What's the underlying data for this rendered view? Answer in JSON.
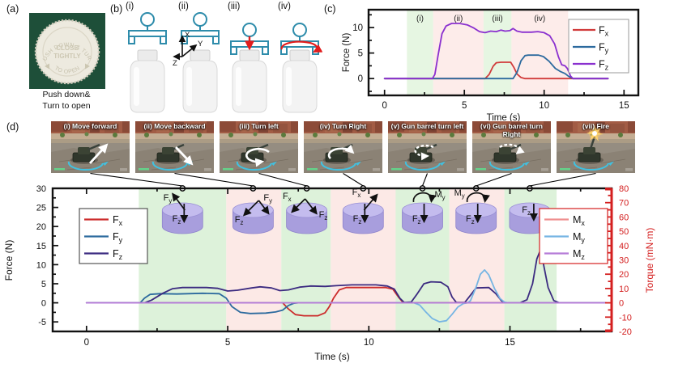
{
  "panels": {
    "a": {
      "label": "(a)",
      "cap": {
        "arc_top": "PUSH DOWN & TURN",
        "center_line1": "CLOSE",
        "center_line2": "TIGHTLY",
        "arc_bottom": "TO OPEN"
      },
      "caption_line1": "Push down&",
      "caption_line2": "Turn to open"
    },
    "b": {
      "label": "(b)",
      "axis_labels": {
        "x": "X",
        "y": "Y",
        "z": "Z"
      },
      "steps": [
        {
          "label": "(i)",
          "gripper": "above"
        },
        {
          "label": "(ii)",
          "gripper": "above",
          "axes": true
        },
        {
          "label": "(iii)",
          "gripper": "on",
          "arrow": "press-down"
        },
        {
          "label": "(iv)",
          "gripper": "on",
          "arrow": "rotate"
        }
      ]
    },
    "c": {
      "label": "(c)"
    },
    "d": {
      "label": "(d)",
      "shots": [
        {
          "label": "(i) Move forward",
          "overlay": "arrow-forward"
        },
        {
          "label": "(ii) Move backward",
          "overlay": "arrow-backward"
        },
        {
          "label": "(iii) Turn left",
          "overlay": "circle-ccw"
        },
        {
          "label": "(iv) Turn Right",
          "overlay": "circle-cw"
        },
        {
          "label": "(v) Gun barrel turn left",
          "overlay": "dashed-ccw"
        },
        {
          "label": "(vi) Gun barrel turn Right",
          "overlay": "dashed-cw"
        },
        {
          "label": "(vii) Fire",
          "overlay": "fire"
        }
      ]
    }
  },
  "chart_data": [
    {
      "id": "bottle-opening-forces",
      "type": "line",
      "xlabel": "Time (s)",
      "ylabel": "Force (N)",
      "xlim": [
        -1,
        15.9
      ],
      "ylim": [
        -3.3,
        13.5
      ],
      "xticks": [
        0,
        5,
        10,
        15
      ],
      "yticks": [
        0,
        5,
        10
      ],
      "x_minor_step": 2.5,
      "y_minor_step": 2.5,
      "show_region_labels": true,
      "regions": [
        {
          "label": "(i)",
          "x0": 1.4,
          "x1": 3.05,
          "color": "#e6f6e2"
        },
        {
          "label": "(ii)",
          "x0": 3.05,
          "x1": 6.2,
          "color": "#fdecea"
        },
        {
          "label": "(iii)",
          "x0": 6.2,
          "x1": 7.95,
          "color": "#e6f6e2"
        },
        {
          "label": "(iv)",
          "x0": 7.95,
          "x1": 11.5,
          "color": "#fdecea"
        }
      ],
      "series": [
        {
          "name": "Fx",
          "base": "F",
          "sub": "x",
          "color": "#d13b3b",
          "points": [
            [
              0,
              0
            ],
            [
              6.3,
              0
            ],
            [
              6.55,
              0.8
            ],
            [
              6.8,
              2.4
            ],
            [
              7.0,
              3.1
            ],
            [
              7.3,
              3.2
            ],
            [
              7.9,
              3.2
            ],
            [
              8.1,
              2.2
            ],
            [
              8.3,
              0.9
            ],
            [
              8.55,
              0.2
            ],
            [
              8.8,
              0
            ],
            [
              14,
              0
            ]
          ]
        },
        {
          "name": "Fy",
          "base": "F",
          "sub": "y",
          "color": "#2c6a9e",
          "points": [
            [
              0,
              0
            ],
            [
              8.05,
              0
            ],
            [
              8.3,
              1.2
            ],
            [
              8.55,
              3.5
            ],
            [
              8.8,
              4.5
            ],
            [
              9.0,
              4.6
            ],
            [
              9.65,
              4.6
            ],
            [
              9.95,
              4.3
            ],
            [
              10.3,
              3.4
            ],
            [
              10.7,
              2.0
            ],
            [
              11.0,
              1.4
            ],
            [
              11.3,
              1.0
            ],
            [
              11.55,
              0.4
            ],
            [
              11.8,
              0
            ],
            [
              14,
              0
            ]
          ]
        },
        {
          "name": "Fz",
          "base": "F",
          "sub": "z",
          "color": "#8a30cf",
          "points": [
            [
              0,
              0
            ],
            [
              3.0,
              0
            ],
            [
              3.15,
              0.8
            ],
            [
              3.35,
              4.5
            ],
            [
              3.6,
              8.8
            ],
            [
              3.85,
              10.3
            ],
            [
              4.2,
              10.8
            ],
            [
              4.7,
              10.8
            ],
            [
              5.2,
              10.5
            ],
            [
              5.6,
              9.9
            ],
            [
              5.95,
              9.2
            ],
            [
              6.3,
              9.0
            ],
            [
              6.65,
              9.3
            ],
            [
              7.0,
              9.2
            ],
            [
              7.3,
              9.5
            ],
            [
              7.55,
              9.3
            ],
            [
              7.85,
              9.4
            ],
            [
              8.05,
              9.8
            ],
            [
              8.3,
              9.3
            ],
            [
              8.6,
              9.1
            ],
            [
              9.2,
              9.1
            ],
            [
              9.6,
              9.2
            ],
            [
              10.0,
              9.0
            ],
            [
              10.35,
              8.4
            ],
            [
              10.65,
              6.8
            ],
            [
              10.9,
              4.2
            ],
            [
              11.1,
              2.7
            ],
            [
              11.3,
              2.5
            ],
            [
              11.45,
              2.0
            ],
            [
              11.65,
              0.5
            ],
            [
              11.8,
              0
            ],
            [
              14,
              0
            ]
          ]
        }
      ]
    },
    {
      "id": "tank-game-forces-torques",
      "type": "line",
      "xlabel": "Time (s)",
      "ylabel": "Force (N)",
      "y2label": "Torque (mN·m)",
      "axis2_color": "#d42020",
      "xlim": [
        -1.2,
        18.6
      ],
      "ylim": [
        -7.5,
        30
      ],
      "y2lim": [
        -20,
        80
      ],
      "xticks": [
        0,
        5,
        10,
        15
      ],
      "yticks": [
        -5,
        0,
        5,
        10,
        15,
        20,
        25,
        30
      ],
      "y2ticks": [
        -20,
        -10,
        0,
        10,
        20,
        30,
        40,
        50,
        60,
        70,
        80
      ],
      "x_minor_step": 2.5,
      "y_minor_step": 2.5,
      "y2_minor_step": 5,
      "show_region_labels": false,
      "regions": [
        {
          "label": "(i)",
          "x0": 1.85,
          "x1": 4.95,
          "color": "#ddf2da"
        },
        {
          "label": "(ii)",
          "x0": 4.95,
          "x1": 6.9,
          "color": "#fce9e6"
        },
        {
          "label": "(iii)",
          "x0": 6.9,
          "x1": 8.65,
          "color": "#ddf2da"
        },
        {
          "label": "(iv)",
          "x0": 8.65,
          "x1": 10.95,
          "color": "#fce9e6"
        },
        {
          "label": "(v)",
          "x0": 10.95,
          "x1": 12.85,
          "color": "#ddf2da"
        },
        {
          "label": "(vi)",
          "x0": 12.85,
          "x1": 14.8,
          "color": "#fce9e6"
        },
        {
          "label": "(vii)",
          "x0": 14.8,
          "x1": 16.65,
          "color": "#ddf2da"
        }
      ],
      "disks": [
        {
          "t": 3.4,
          "items": [
            {
              "kind": "arrow",
              "dir": "up-left",
              "base": "F",
              "sub": "y"
            },
            {
              "kind": "arrow",
              "dir": "down",
              "base": "F",
              "sub": "z"
            }
          ]
        },
        {
          "t": 5.9,
          "items": [
            {
              "kind": "arrow",
              "dir": "down-left",
              "base": "F",
              "sub": "z"
            },
            {
              "kind": "arrow",
              "dir": "down-right",
              "base": "F",
              "sub": "y"
            }
          ]
        },
        {
          "t": 7.8,
          "items": [
            {
              "kind": "arrow",
              "dir": "down-left2",
              "base": "F",
              "sub": "x"
            },
            {
              "kind": "arrow",
              "dir": "down-right2",
              "base": "F",
              "sub": "z"
            }
          ]
        },
        {
          "t": 9.8,
          "items": [
            {
              "kind": "arrow",
              "dir": "up-right",
              "base": "F",
              "sub": "x"
            },
            {
              "kind": "arrow",
              "dir": "down",
              "base": "F",
              "sub": "z"
            }
          ]
        },
        {
          "t": 11.9,
          "items": [
            {
              "kind": "curl",
              "side": "right",
              "base": "M",
              "sub": "y"
            },
            {
              "kind": "arrow",
              "dir": "down",
              "base": "F",
              "sub": "z"
            }
          ]
        },
        {
          "t": 13.8,
          "items": [
            {
              "kind": "curl",
              "side": "left",
              "base": "M",
              "sub": "y"
            },
            {
              "kind": "arrow",
              "dir": "down",
              "base": "F",
              "sub": "z"
            }
          ]
        },
        {
          "t": 15.7,
          "items": [
            {
              "kind": "arrow",
              "dir": "down-c",
              "base": "F",
              "sub": "z"
            }
          ]
        }
      ],
      "series": [
        {
          "name": "Fx",
          "base": "F",
          "sub": "x",
          "axis": "y",
          "color": "#cc2b2b",
          "points": [
            [
              0,
              0
            ],
            [
              6.95,
              0
            ],
            [
              7.15,
              -1.6
            ],
            [
              7.4,
              -3.1
            ],
            [
              7.7,
              -3.4
            ],
            [
              8.2,
              -3.4
            ],
            [
              8.45,
              -2.6
            ],
            [
              8.6,
              -1.0
            ],
            [
              8.75,
              1.2
            ],
            [
              8.95,
              3.4
            ],
            [
              9.2,
              4.0
            ],
            [
              10.6,
              4.0
            ],
            [
              10.85,
              3.6
            ],
            [
              11.05,
              1.5
            ],
            [
              11.2,
              0.2
            ],
            [
              11.35,
              0
            ],
            [
              18.4,
              0
            ]
          ]
        },
        {
          "name": "Fy",
          "base": "F",
          "sub": "y",
          "axis": "y",
          "color": "#2c6a9e",
          "points": [
            [
              0,
              0
            ],
            [
              1.9,
              0
            ],
            [
              2.05,
              1.2
            ],
            [
              2.25,
              2.2
            ],
            [
              2.6,
              2.4
            ],
            [
              3.2,
              2.3
            ],
            [
              4.1,
              2.5
            ],
            [
              4.7,
              2.4
            ],
            [
              4.95,
              1.2
            ],
            [
              5.15,
              -1.0
            ],
            [
              5.45,
              -2.5
            ],
            [
              5.8,
              -2.8
            ],
            [
              6.35,
              -2.7
            ],
            [
              6.7,
              -2.4
            ],
            [
              6.95,
              -1.9
            ],
            [
              7.15,
              -0.7
            ],
            [
              7.35,
              -0.1
            ],
            [
              7.5,
              0
            ],
            [
              18.4,
              0
            ]
          ]
        },
        {
          "name": "Fz",
          "base": "F",
          "sub": "z",
          "axis": "y",
          "color": "#3b2a80",
          "points": [
            [
              0,
              0
            ],
            [
              2.05,
              0
            ],
            [
              2.3,
              0.7
            ],
            [
              2.7,
              2.5
            ],
            [
              3.05,
              3.7
            ],
            [
              3.4,
              4.0
            ],
            [
              4.25,
              4.0
            ],
            [
              4.65,
              3.8
            ],
            [
              5.0,
              3.1
            ],
            [
              5.35,
              3.3
            ],
            [
              5.85,
              3.9
            ],
            [
              6.15,
              4.2
            ],
            [
              6.55,
              3.9
            ],
            [
              6.85,
              3.2
            ],
            [
              7.15,
              3.4
            ],
            [
              7.55,
              4.1
            ],
            [
              7.95,
              4.4
            ],
            [
              8.45,
              4.3
            ],
            [
              8.85,
              4.5
            ],
            [
              9.4,
              4.7
            ],
            [
              10.25,
              4.7
            ],
            [
              10.65,
              4.4
            ],
            [
              10.9,
              3.6
            ],
            [
              11.1,
              1.2
            ],
            [
              11.25,
              0.1
            ],
            [
              11.5,
              0.2
            ],
            [
              11.7,
              2.2
            ],
            [
              11.95,
              5.0
            ],
            [
              12.2,
              5.5
            ],
            [
              12.55,
              5.4
            ],
            [
              12.8,
              4.2
            ],
            [
              12.95,
              1.5
            ],
            [
              13.1,
              0.1
            ],
            [
              13.4,
              0.1
            ],
            [
              13.6,
              2.0
            ],
            [
              13.8,
              3.9
            ],
            [
              14.25,
              4.0
            ],
            [
              14.5,
              2.4
            ],
            [
              14.7,
              0.5
            ],
            [
              14.85,
              0
            ],
            [
              15.35,
              0
            ],
            [
              15.6,
              0.8
            ],
            [
              15.8,
              5.0
            ],
            [
              15.95,
              11.5
            ],
            [
              16.05,
              13.3
            ],
            [
              16.15,
              11.5
            ],
            [
              16.35,
              4.0
            ],
            [
              16.55,
              0.6
            ],
            [
              16.75,
              0
            ],
            [
              18.4,
              0
            ]
          ]
        },
        {
          "name": "Mx",
          "base": "M",
          "sub": "x",
          "axis": "y2",
          "color": "#ef8f8f",
          "points": [
            [
              0,
              0
            ],
            [
              18.4,
              0
            ]
          ]
        },
        {
          "name": "My",
          "base": "M",
          "sub": "y",
          "axis": "y2",
          "color": "#76b5e3",
          "points": [
            [
              0,
              0
            ],
            [
              11.6,
              0
            ],
            [
              11.8,
              -1.5
            ],
            [
              12.0,
              -6
            ],
            [
              12.25,
              -11
            ],
            [
              12.5,
              -13.3
            ],
            [
              12.75,
              -12.5
            ],
            [
              12.95,
              -8
            ],
            [
              13.15,
              -3
            ],
            [
              13.35,
              -0.5
            ],
            [
              13.5,
              0
            ],
            [
              13.6,
              1.5
            ],
            [
              13.8,
              11
            ],
            [
              13.95,
              20
            ],
            [
              14.1,
              23
            ],
            [
              14.25,
              19.5
            ],
            [
              14.45,
              10
            ],
            [
              14.65,
              3
            ],
            [
              14.8,
              0.5
            ],
            [
              14.95,
              0
            ],
            [
              18.4,
              0
            ]
          ]
        },
        {
          "name": "Mz",
          "base": "M",
          "sub": "z",
          "axis": "y2",
          "color": "#b57bd8",
          "points": [
            [
              0,
              0
            ],
            [
              18.4,
              0
            ]
          ]
        }
      ]
    }
  ]
}
